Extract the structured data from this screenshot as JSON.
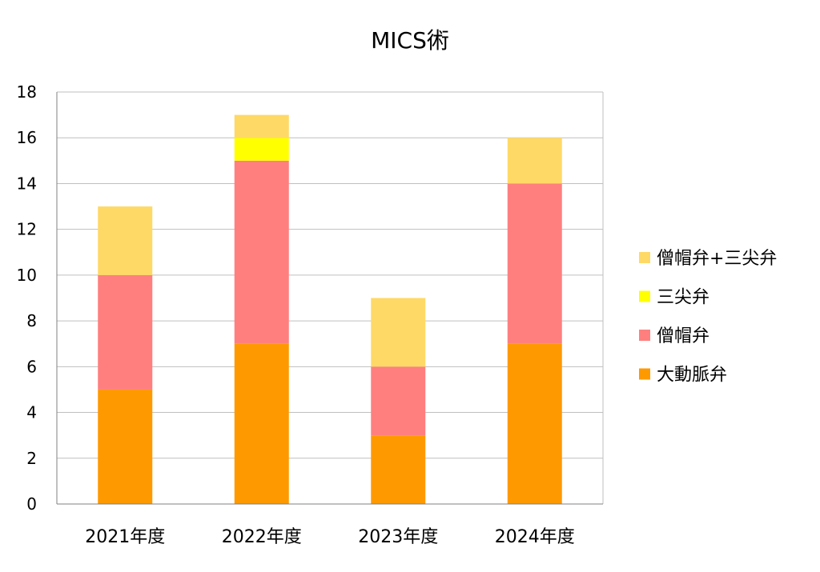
{
  "chart_data": {
    "type": "bar",
    "stacked": true,
    "title": "MICS術",
    "xlabel": "",
    "ylabel": "",
    "categories": [
      "2021年度",
      "2022年度",
      "2023年度",
      "2024年度"
    ],
    "ylim": [
      0,
      18
    ],
    "yticks": [
      0,
      2,
      4,
      6,
      8,
      10,
      12,
      14,
      16,
      18
    ],
    "grid": true,
    "legend_position": "right",
    "series": [
      {
        "name": "大動脈弁",
        "color": "#FF9900",
        "values": [
          5,
          7,
          3,
          7
        ]
      },
      {
        "name": "僧帽弁",
        "color": "#FF7F7F",
        "values": [
          5,
          8,
          3,
          7
        ]
      },
      {
        "name": "三尖弁",
        "color": "#FFFF00",
        "values": [
          0,
          1,
          0,
          0
        ]
      },
      {
        "name": "僧帽弁+三尖弁",
        "color": "#FFD966",
        "values": [
          3,
          1,
          3,
          2
        ]
      }
    ]
  }
}
